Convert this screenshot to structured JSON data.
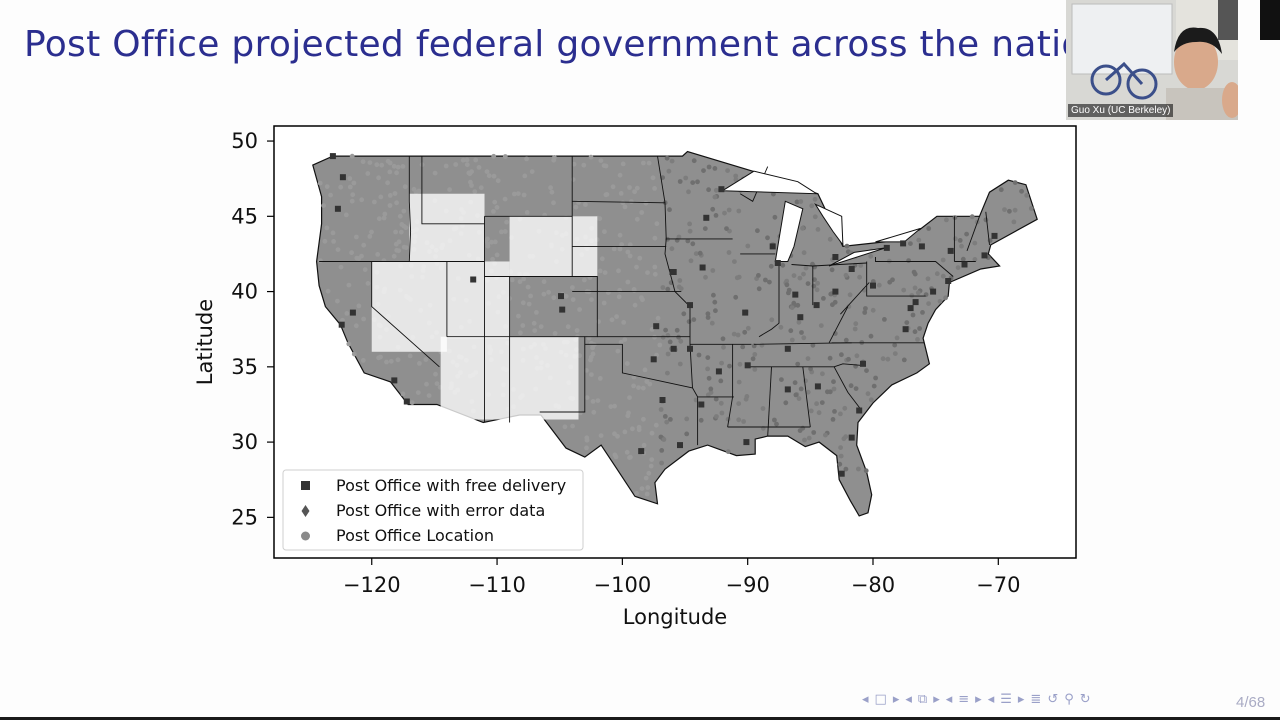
{
  "slide": {
    "title": "Post Office projected federal government across the nation",
    "page": "4/68"
  },
  "webcam": {
    "name": "Guo Xu (UC Berkeley)"
  },
  "nav_icons": [
    "triangle-left-icon",
    "frame-icon",
    "triangle-right-icon",
    "triangle-left-icon",
    "subsection-icon",
    "triangle-right-icon",
    "triangle-left-icon",
    "section-icon",
    "triangle-right-icon",
    "triangle-left-icon",
    "list-icon",
    "triangle-right-icon",
    "align-icon",
    "undo-icon",
    "search-icon",
    "redo-icon"
  ],
  "chart_data": {
    "type": "scatter",
    "xlabel": "Longitude",
    "ylabel": "Latitude",
    "xlim": [
      -127.8,
      -63.8
    ],
    "ylim": [
      22.3,
      51
    ],
    "xticks": [
      -120,
      -110,
      -100,
      -90,
      -80,
      -70
    ],
    "xtick_labels": [
      "−120",
      "−110",
      "−100",
      "−90",
      "−80",
      "−70"
    ],
    "yticks": [
      25,
      30,
      35,
      40,
      45,
      50
    ],
    "ytick_labels": [
      "25",
      "30",
      "35",
      "40",
      "45",
      "50"
    ],
    "grid": false,
    "legend_position": "lower-left",
    "series": [
      {
        "name": "Post Office with free delivery",
        "marker": "square",
        "color": "#333333",
        "points": [
          [
            -123.1,
            49.0
          ],
          [
            -122.3,
            47.6
          ],
          [
            -122.7,
            45.5
          ],
          [
            -122.4,
            37.8
          ],
          [
            -118.2,
            34.1
          ],
          [
            -117.2,
            32.7
          ],
          [
            -121.5,
            38.6
          ],
          [
            -111.9,
            40.8
          ],
          [
            -104.9,
            39.7
          ],
          [
            -104.8,
            38.8
          ],
          [
            -96.0,
            41.3
          ],
          [
            -95.9,
            41.3
          ],
          [
            -97.3,
            37.7
          ],
          [
            -94.6,
            39.1
          ],
          [
            -93.6,
            41.6
          ],
          [
            -93.3,
            44.9
          ],
          [
            -92.1,
            46.8
          ],
          [
            -90.2,
            38.6
          ],
          [
            -87.6,
            41.9
          ],
          [
            -88.0,
            43.0
          ],
          [
            -86.2,
            39.8
          ],
          [
            -84.5,
            39.1
          ],
          [
            -83.0,
            40.0
          ],
          [
            -81.7,
            41.5
          ],
          [
            -83.0,
            42.3
          ],
          [
            -80.0,
            40.4
          ],
          [
            -78.9,
            42.9
          ],
          [
            -77.6,
            43.2
          ],
          [
            -76.1,
            43.0
          ],
          [
            -73.8,
            42.7
          ],
          [
            -75.2,
            40.0
          ],
          [
            -74.0,
            40.7
          ],
          [
            -72.7,
            41.8
          ],
          [
            -71.1,
            42.4
          ],
          [
            -70.3,
            43.7
          ],
          [
            -76.6,
            39.3
          ],
          [
            -77.0,
            38.9
          ],
          [
            -77.4,
            37.5
          ],
          [
            -80.8,
            35.2
          ],
          [
            -84.4,
            33.7
          ],
          [
            -81.1,
            32.1
          ],
          [
            -86.8,
            33.5
          ],
          [
            -90.1,
            30.0
          ],
          [
            -95.4,
            29.8
          ],
          [
            -96.8,
            32.8
          ],
          [
            -98.5,
            29.4
          ],
          [
            -97.5,
            35.5
          ],
          [
            -92.3,
            34.7
          ],
          [
            -85.8,
            38.3
          ],
          [
            -86.8,
            36.2
          ],
          [
            -90.0,
            35.1
          ],
          [
            -82.5,
            27.9
          ],
          [
            -81.7,
            30.3
          ],
          [
            -93.7,
            32.5
          ],
          [
            -94.6,
            36.2
          ],
          [
            -95.9,
            36.2
          ]
        ]
      },
      {
        "name": "Post Office with error data",
        "marker": "diamond",
        "color": "#555555",
        "points": []
      },
      {
        "name": "Post Office Location",
        "marker": "circle",
        "color": "#8a8a8a",
        "points": []
      }
    ]
  }
}
